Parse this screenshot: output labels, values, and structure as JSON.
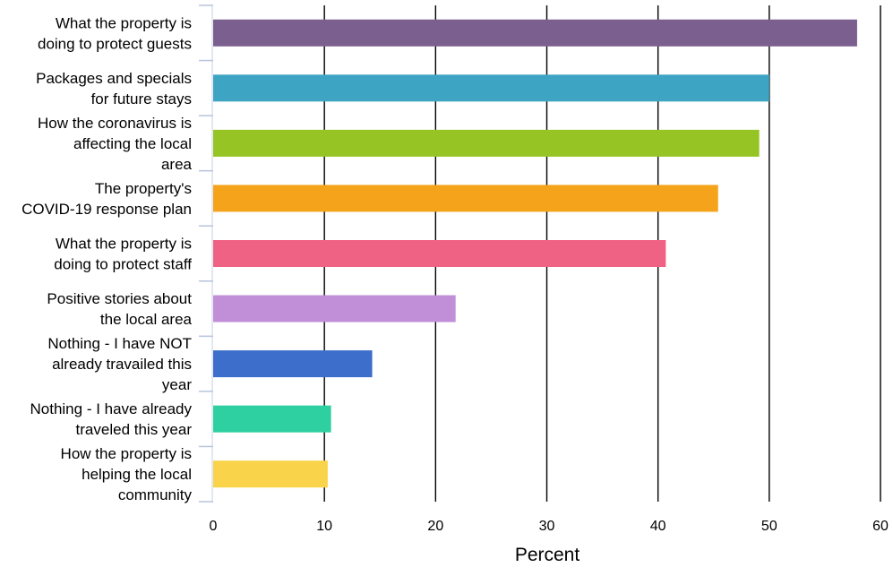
{
  "chart_data": {
    "type": "bar",
    "orientation": "horizontal",
    "xlabel": "Percent",
    "ylabel": "",
    "xlim": [
      0,
      60
    ],
    "x_ticks": [
      0,
      10,
      20,
      30,
      40,
      50,
      60
    ],
    "grid": "vertical",
    "categories": [
      "What the property is doing to protect guests",
      "Packages and specials for future stays",
      "How the coronavirus is affecting the local area",
      "The property's COVID-19 response plan",
      "What the property is doing to protect staff",
      "Positive stories about the local area",
      "Nothing - I have NOT already travailed this year",
      "Nothing - I have already traveled this year",
      "How the property is helping the local community"
    ],
    "category_label_lines": [
      [
        "What the property is",
        "doing to protect guests"
      ],
      [
        "Packages and specials",
        "for future stays"
      ],
      [
        "How the coronavirus is",
        "affecting the local",
        "area"
      ],
      [
        "The property's",
        "COVID-19 response plan"
      ],
      [
        "What the property is",
        "doing to protect staff"
      ],
      [
        "Positive stories about",
        "the local area"
      ],
      [
        "Nothing - I have NOT",
        "already travailed this",
        "year"
      ],
      [
        "Nothing - I have already",
        "traveled this year"
      ],
      [
        "How the property is",
        "helping the local",
        "community"
      ]
    ],
    "values": [
      57.9,
      50.0,
      49.1,
      45.4,
      40.7,
      21.8,
      14.3,
      10.6,
      10.3
    ],
    "colors": [
      "#7b5f8f",
      "#3ea4c4",
      "#95c424",
      "#f4a31a",
      "#ef6283",
      "#c18fd8",
      "#3d6ecb",
      "#2ecfa0",
      "#f9d44a"
    ]
  }
}
